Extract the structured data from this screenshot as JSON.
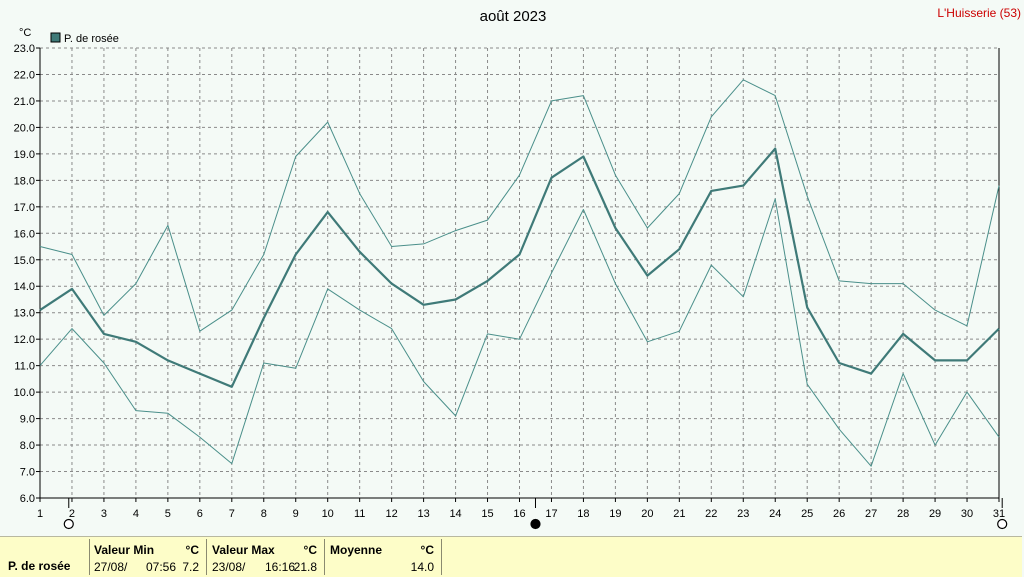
{
  "title": "août 2023",
  "station": "L'Huisserie (53)",
  "colors": {
    "background": "#f4faf6",
    "series": "#3f7a78",
    "envelope": "#4a8f8a",
    "grid": "#8a8a8a",
    "station": "#cc0000",
    "stats_background": "#fdfdc8"
  },
  "chart_data": {
    "type": "line",
    "title": "août 2023",
    "y_unit": "°C",
    "ylim": [
      6.0,
      23.0
    ],
    "y_ticks": [
      "6.0",
      "7.0",
      "8.0",
      "9.0",
      "10.0",
      "11.0",
      "12.0",
      "13.0",
      "14.0",
      "15.0",
      "16.0",
      "17.0",
      "18.0",
      "19.0",
      "20.0",
      "21.0",
      "22.0",
      "23.0"
    ],
    "x": [
      1,
      2,
      3,
      4,
      5,
      6,
      7,
      8,
      9,
      10,
      11,
      12,
      13,
      14,
      15,
      16,
      17,
      18,
      19,
      20,
      21,
      22,
      23,
      24,
      25,
      26,
      27,
      28,
      29,
      30,
      31
    ],
    "grid": true,
    "legend": [
      "P. de rosée"
    ],
    "series": [
      {
        "name": "P. de rosée",
        "role": "mean",
        "values": [
          13.1,
          13.9,
          12.2,
          11.9,
          11.2,
          10.7,
          10.2,
          12.8,
          15.2,
          16.8,
          15.3,
          14.1,
          13.3,
          13.5,
          14.2,
          15.2,
          18.1,
          18.9,
          16.2,
          14.4,
          15.4,
          17.6,
          17.8,
          19.2,
          13.2,
          11.1,
          10.7,
          12.2,
          11.2,
          11.2,
          12.4
        ]
      },
      {
        "role": "max",
        "values": [
          15.5,
          15.2,
          12.9,
          14.1,
          16.3,
          12.3,
          13.1,
          15.2,
          18.9,
          20.2,
          17.5,
          15.5,
          15.6,
          16.1,
          16.5,
          18.2,
          21.0,
          21.2,
          18.2,
          16.2,
          17.5,
          20.4,
          21.8,
          21.2,
          17.4,
          14.2,
          14.1,
          14.1,
          13.1,
          12.5,
          17.8
        ]
      },
      {
        "role": "min",
        "values": [
          11.0,
          12.4,
          11.1,
          9.3,
          9.2,
          8.3,
          7.3,
          11.1,
          10.9,
          13.9,
          13.1,
          12.4,
          10.4,
          9.1,
          12.2,
          12.0,
          14.5,
          16.9,
          14.1,
          11.9,
          12.3,
          14.8,
          13.6,
          17.3,
          10.3,
          8.6,
          7.2,
          10.7,
          8.0,
          10.0,
          8.3
        ]
      }
    ],
    "moon_phases": [
      {
        "day": 1.9,
        "phase": "full"
      },
      {
        "day": 16.5,
        "phase": "new"
      },
      {
        "day": 31.1,
        "phase": "full"
      }
    ]
  },
  "stats": {
    "series_label": "P. de rosée",
    "min_header": "Valeur Min",
    "max_header": "Valeur Max",
    "mean_header": "Moyenne",
    "unit": "°C",
    "min_date": "27/08/",
    "min_time": "07:56",
    "min_value": "7.2",
    "max_date": "23/08/",
    "max_time": "16:16",
    "max_value": "21.8",
    "mean_value": "14.0"
  }
}
